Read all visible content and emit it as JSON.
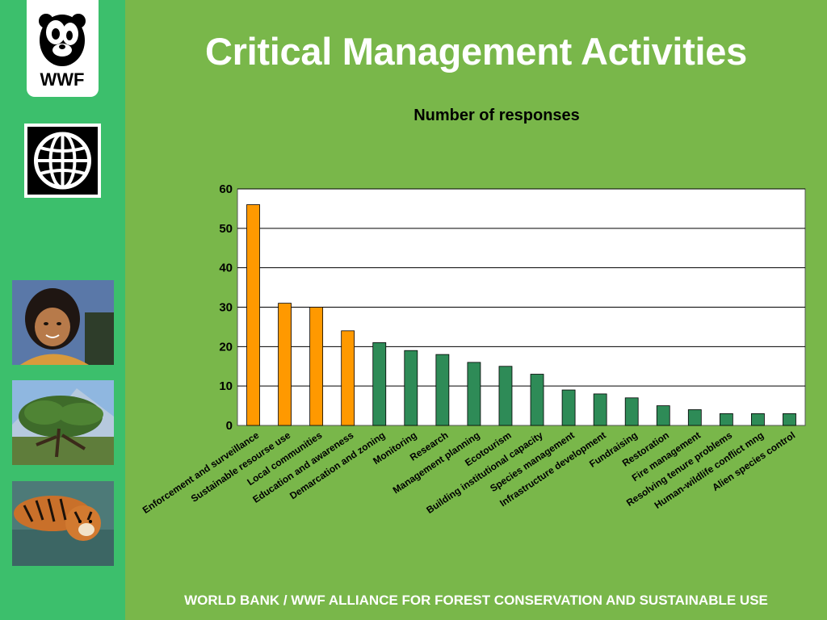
{
  "slide": {
    "title": "Critical Management Activities",
    "footer": "WORLD BANK / WWF ALLIANCE FOR FOREST CONSERVATION AND SUSTAINABLE USE"
  },
  "logos": {
    "wwf_text": "WWF"
  },
  "colors": {
    "background": "#79b74a",
    "sidebar": "#3cbf6c",
    "highlight_bar": "#ff9900",
    "normal_bar": "#2e8b57"
  },
  "chart_data": {
    "type": "bar",
    "title": "Number of responses",
    "xlabel": "",
    "ylabel": "",
    "ylim": [
      0,
      60
    ],
    "yticks": [
      0,
      10,
      20,
      30,
      40,
      50,
      60
    ],
    "grid": true,
    "categories": [
      "Enforcement and surveillance",
      "Sustainable resourse use",
      "Local communities",
      "Education and awareness",
      "Demarcation and zoning",
      "Monitoring",
      "Research",
      "Management planning",
      "Ecotourism",
      "Building institutional capacity",
      "Species management",
      "Infrastructure development",
      "Fundraising",
      "Restoration",
      "Fire management",
      "Resolving tenure problems",
      "Human-wildlife conflict mng",
      "Alien species control"
    ],
    "values": [
      56,
      31,
      30,
      24,
      21,
      19,
      18,
      16,
      15,
      13,
      9,
      8,
      7,
      5,
      4,
      3,
      3,
      3
    ],
    "highlighted_count": 4
  }
}
